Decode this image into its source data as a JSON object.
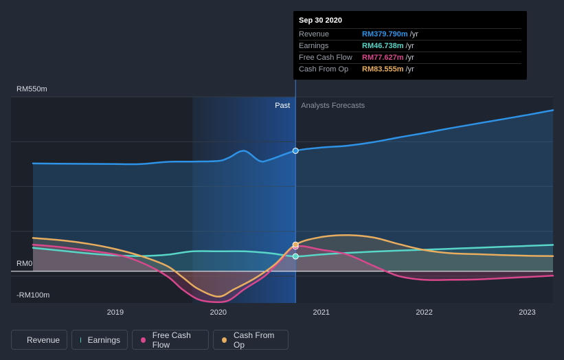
{
  "tooltip": {
    "date": "Sep 30 2020",
    "rows": [
      {
        "label": "Revenue",
        "value": "RM379.790m",
        "unit": "/yr",
        "color": "#2e93e6"
      },
      {
        "label": "Earnings",
        "value": "RM46.738m",
        "unit": "/yr",
        "color": "#58d6c8"
      },
      {
        "label": "Free Cash Flow",
        "value": "RM77.627m",
        "unit": "/yr",
        "color": "#d9478c"
      },
      {
        "label": "Cash From Op",
        "value": "RM83.555m",
        "unit": "/yr",
        "color": "#e8ad5e"
      }
    ]
  },
  "legend": {
    "items": [
      {
        "label": "Revenue",
        "color": "#2e93e6"
      },
      {
        "label": "Earnings",
        "color": "#58d6c8"
      },
      {
        "label": "Free Cash Flow",
        "color": "#d9478c"
      },
      {
        "label": "Cash From Op",
        "color": "#e8ad5e"
      }
    ]
  },
  "chart_data": {
    "type": "line",
    "title": "",
    "xlabel": "",
    "ylabel": "",
    "ylim": [
      -100,
      550
    ],
    "xlim": [
      2018.2,
      2023.25
    ],
    "y_tick_labels": [
      "RM550m",
      "RM0",
      "-RM100m"
    ],
    "x_tick_labels": [
      "2019",
      "2020",
      "2021",
      "2022",
      "2023"
    ],
    "x_ticks": [
      2019,
      2020,
      2021,
      2022,
      2023
    ],
    "past_label": "Past",
    "forecast_label": "Analysts Forecasts",
    "divider_x": 2020.75,
    "shaded_past_start": 2019.75,
    "series": [
      {
        "name": "Revenue",
        "color": "#2e93e6",
        "x": [
          2018.2,
          2018.6,
          2019.0,
          2019.25,
          2019.5,
          2019.75,
          2020.0,
          2020.1,
          2020.25,
          2020.4,
          2020.5,
          2020.75,
          2021.0,
          2021.25,
          2021.5,
          2021.75,
          2022.0,
          2022.25,
          2022.5,
          2022.75,
          2023.0,
          2023.25
        ],
        "values": [
          340,
          339,
          338,
          338,
          345,
          346,
          348,
          358,
          380,
          348,
          352,
          380,
          390,
          396,
          407,
          422,
          436,
          451,
          465,
          479,
          493,
          508
        ]
      },
      {
        "name": "Earnings",
        "color": "#58d6c8",
        "x": [
          2018.2,
          2018.5,
          2018.75,
          2019.0,
          2019.25,
          2019.5,
          2019.75,
          2020.0,
          2020.25,
          2020.5,
          2020.75,
          2021.0,
          2021.25,
          2021.5,
          2021.75,
          2022.0,
          2022.25,
          2022.5,
          2022.75,
          2023.0,
          2023.25
        ],
        "values": [
          74,
          64,
          56,
          50,
          48,
          52,
          63,
          63,
          63,
          57,
          47,
          53,
          58,
          62,
          65,
          68,
          71,
          74,
          77,
          80,
          83
        ]
      },
      {
        "name": "Free Cash Flow",
        "color": "#d9478c",
        "x": [
          2018.2,
          2018.5,
          2019.0,
          2019.25,
          2019.5,
          2019.65,
          2019.8,
          2019.95,
          2020.1,
          2020.25,
          2020.45,
          2020.6,
          2020.75,
          2021.0,
          2021.25,
          2021.5,
          2021.75,
          2022.0,
          2022.25,
          2022.5,
          2022.75,
          2023.0,
          2023.25
        ],
        "values": [
          84,
          75,
          53,
          28,
          -15,
          -57,
          -88,
          -97,
          -92,
          -57,
          -15,
          33,
          78,
          68,
          53,
          18,
          -15,
          -27,
          -27,
          -26,
          -22,
          -18,
          -14
        ]
      },
      {
        "name": "Cash From Op",
        "color": "#e8ad5e",
        "x": [
          2018.2,
          2018.5,
          2018.75,
          2019.0,
          2019.25,
          2019.5,
          2019.65,
          2019.8,
          2020.0,
          2020.15,
          2020.35,
          2020.55,
          2020.75,
          2021.0,
          2021.25,
          2021.5,
          2021.75,
          2022.0,
          2022.25,
          2022.5,
          2022.75,
          2023.0,
          2023.25
        ],
        "values": [
          105,
          97,
          86,
          70,
          48,
          17,
          -18,
          -55,
          -80,
          -57,
          -23,
          22,
          84,
          108,
          114,
          107,
          86,
          67,
          57,
          54,
          51,
          49,
          48
        ]
      }
    ],
    "markers": [
      {
        "series": "Revenue",
        "x": 2020.75,
        "value": 380
      },
      {
        "series": "Earnings",
        "x": 2020.75,
        "value": 47
      },
      {
        "series": "Free Cash Flow",
        "x": 2020.75,
        "value": 78
      },
      {
        "series": "Cash From Op",
        "x": 2020.75,
        "value": 84
      }
    ]
  }
}
